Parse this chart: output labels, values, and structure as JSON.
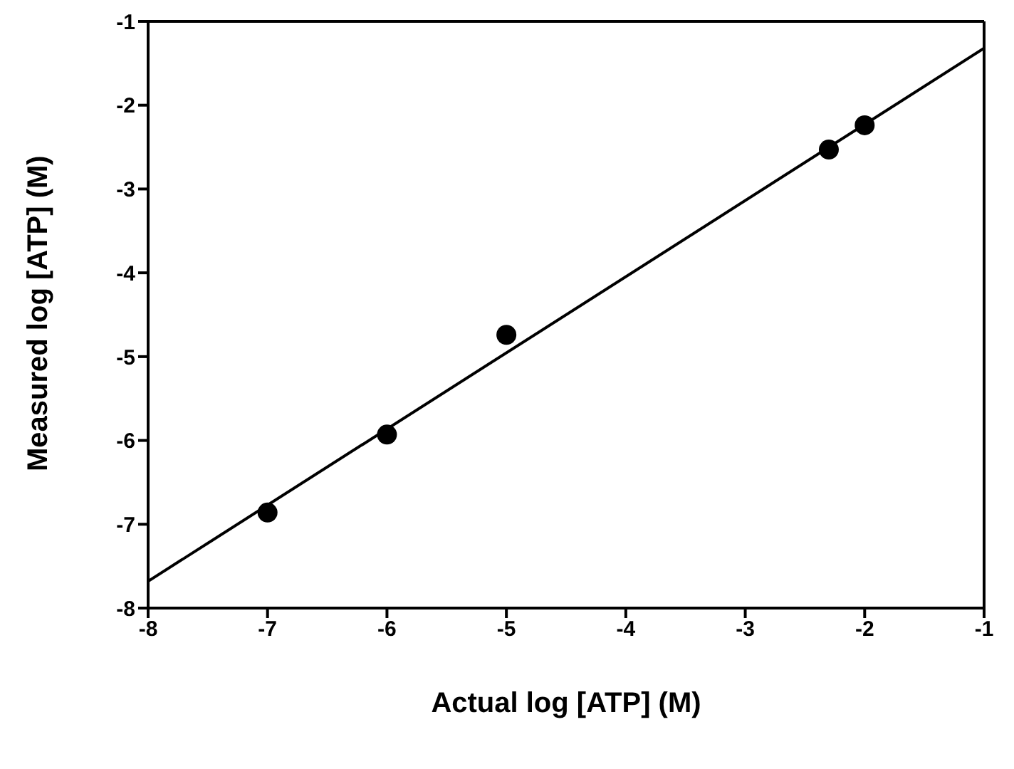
{
  "chart_data": {
    "type": "scatter",
    "xlabel": "Actual log [ATP] (M)",
    "ylabel": "Measured log [ATP] (M)",
    "x": [
      -7,
      -6,
      -5,
      -2.3,
      -2
    ],
    "series": [
      {
        "color": "#000000",
        "marker": "circle",
        "values": [
          -6.86,
          -5.93,
          -4.74,
          -2.53,
          -2.24
        ]
      },
      {
        "type": "line",
        "color": "#000000",
        "marker": "none",
        "line_style": "solid",
        "x": [
          -8,
          -1
        ],
        "values": [
          -7.68,
          -1.32
        ]
      }
    ],
    "xlim": [
      -8,
      -1
    ],
    "xticks": [
      -8,
      -7,
      -6,
      -5,
      -4,
      -3,
      -2,
      -1
    ],
    "ylim": [
      -8,
      -1
    ],
    "yticks": [
      -8,
      -7,
      -6,
      -5,
      -4,
      -3,
      -2,
      -1
    ],
    "legend": false
  }
}
